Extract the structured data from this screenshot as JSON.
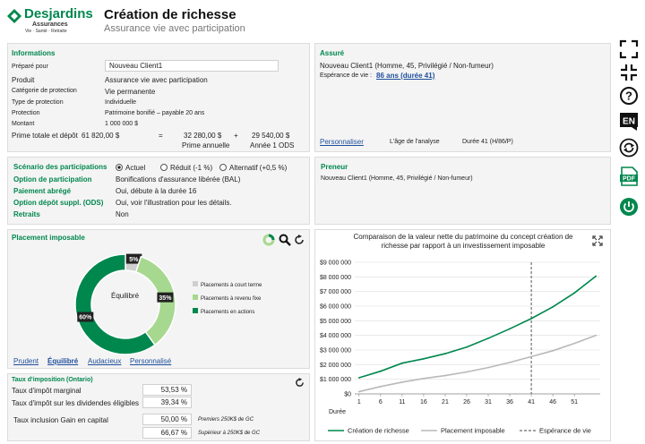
{
  "header": {
    "logo_name": "Desjardins",
    "logo_sub": "Assurances",
    "logo_tagline": "Vie · Santé · Retraite",
    "title": "Création de richesse",
    "subtitle": "Assurance vie avec participation"
  },
  "informations": {
    "heading": "Informations",
    "prepared_for_label": "Préparé pour",
    "prepared_for_value": "Nouveau Client1",
    "rows": [
      {
        "label": "Produit",
        "value": "Assurance vie avec participation"
      },
      {
        "label": "Catégorie de protection",
        "value": "Vie permanente"
      },
      {
        "label": "Type de protection",
        "value": "Individuelle"
      },
      {
        "label": "Protection",
        "value": "Patrimoine bonifié – payable 20 ans"
      },
      {
        "label": "Montant",
        "value": "1 000 000 $"
      }
    ],
    "prime_label": "Prime totale et dépôt",
    "prime_total": "61 820,00 $",
    "eq": "=",
    "prime_annuelle": "32 280,00 $",
    "plus": "+",
    "depot": "29 540,00 $",
    "prime_annuelle_label": "Prime annuelle",
    "depot_label": "Année 1 ODS"
  },
  "assure": {
    "heading": "Assuré",
    "client": "Nouveau Client1 (Homme, 45, Privilégié / Non-fumeur)",
    "esperance_label": "Espérance de vie :",
    "esperance_link": "86 ans (durée 41)",
    "personnaliser": "Personnaliser",
    "age_label": "L'âge de l'analyse",
    "age_value": "Durée 41  (H/86/P)"
  },
  "scenario": {
    "heading": "Scénario des participations",
    "options": [
      {
        "label": "Actuel",
        "selected": true
      },
      {
        "label": "Réduit (-1 %)",
        "selected": false
      },
      {
        "label": "Alternatif (+0,5 %)",
        "selected": false
      }
    ],
    "rows": [
      {
        "label": "Option de participation",
        "value": "Bonifications d'assurance libérée (BAL)"
      },
      {
        "label": "Paiement abrégé",
        "value": "Oui, débute à la durée 16"
      },
      {
        "label": "Option dépôt suppl. (ODS)",
        "value": "Oui, voir l'illustration pour les détails."
      },
      {
        "label": "Retraits",
        "value": "Non"
      }
    ]
  },
  "preneur": {
    "heading": "Preneur",
    "client": "Nouveau Client1 (Homme, 45, Privilégié / Non-fumeur)"
  },
  "placement": {
    "heading": "Placement imposable",
    "center_label": "Équilibré",
    "slices": [
      {
        "label": "Placements à court terme",
        "pct": 5,
        "text": "5%",
        "color": "#cfcfcf"
      },
      {
        "label": "Placements à revenu fixe",
        "pct": 35,
        "text": "35%",
        "color": "#a7d88f"
      },
      {
        "label": "Placements en actions",
        "pct": 60,
        "text": "60%",
        "color": "#00874e"
      }
    ],
    "profiles": [
      "Prudent",
      "Équilibré",
      "Audacieux",
      "Personnalisé"
    ]
  },
  "taux": {
    "heading": "Taux d'imposition (Ontario)",
    "rows": [
      {
        "label": "Taux d'impôt marginal",
        "value": "53,53 %",
        "note": ""
      },
      {
        "label": "Taux d'impôt sur les dividendes éligibles",
        "value": "39,34 %",
        "note": ""
      },
      {
        "label": "Taux inclusion Gain en capital",
        "value": "50,00 %",
        "note": "Premiers 250K$ de GC"
      },
      {
        "label": "",
        "value": "66,67 %",
        "note": "Supérieur à 250K$ de GC"
      }
    ]
  },
  "chart_data": {
    "type": "line",
    "title": "Comparaison de la valeur nette du patrimoine du concept création de richesse par rapport à un investissement imposable",
    "xlabel": "Durée",
    "x": [
      1,
      6,
      11,
      16,
      21,
      26,
      31,
      36,
      41,
      46,
      51,
      56
    ],
    "xticks": [
      "1",
      "6",
      "11",
      "16",
      "21",
      "26",
      "31",
      "36",
      "41",
      "46",
      "51"
    ],
    "ylim": [
      0,
      9000000
    ],
    "yticks": [
      "$0",
      "$1 000 000",
      "$2 000 000",
      "$3 000 000",
      "$4 000 000",
      "$5 000 000",
      "$6 000 000",
      "$7 000 000",
      "$8 000 000",
      "$9 000 000"
    ],
    "series": [
      {
        "name": "Création de richesse",
        "color": "#00874e",
        "values": [
          1100000,
          1550000,
          2100000,
          2400000,
          2750000,
          3200000,
          3800000,
          4450000,
          5150000,
          5950000,
          6900000,
          8050000
        ]
      },
      {
        "name": "Placement imposable",
        "color": "#b9b9b9",
        "values": [
          150000,
          500000,
          800000,
          1050000,
          1250000,
          1500000,
          1800000,
          2150000,
          2550000,
          2950000,
          3450000,
          4000000
        ]
      }
    ],
    "vline": {
      "name": "Espérance de vie",
      "x": 41
    },
    "grid": true,
    "legend": "bottom"
  }
}
